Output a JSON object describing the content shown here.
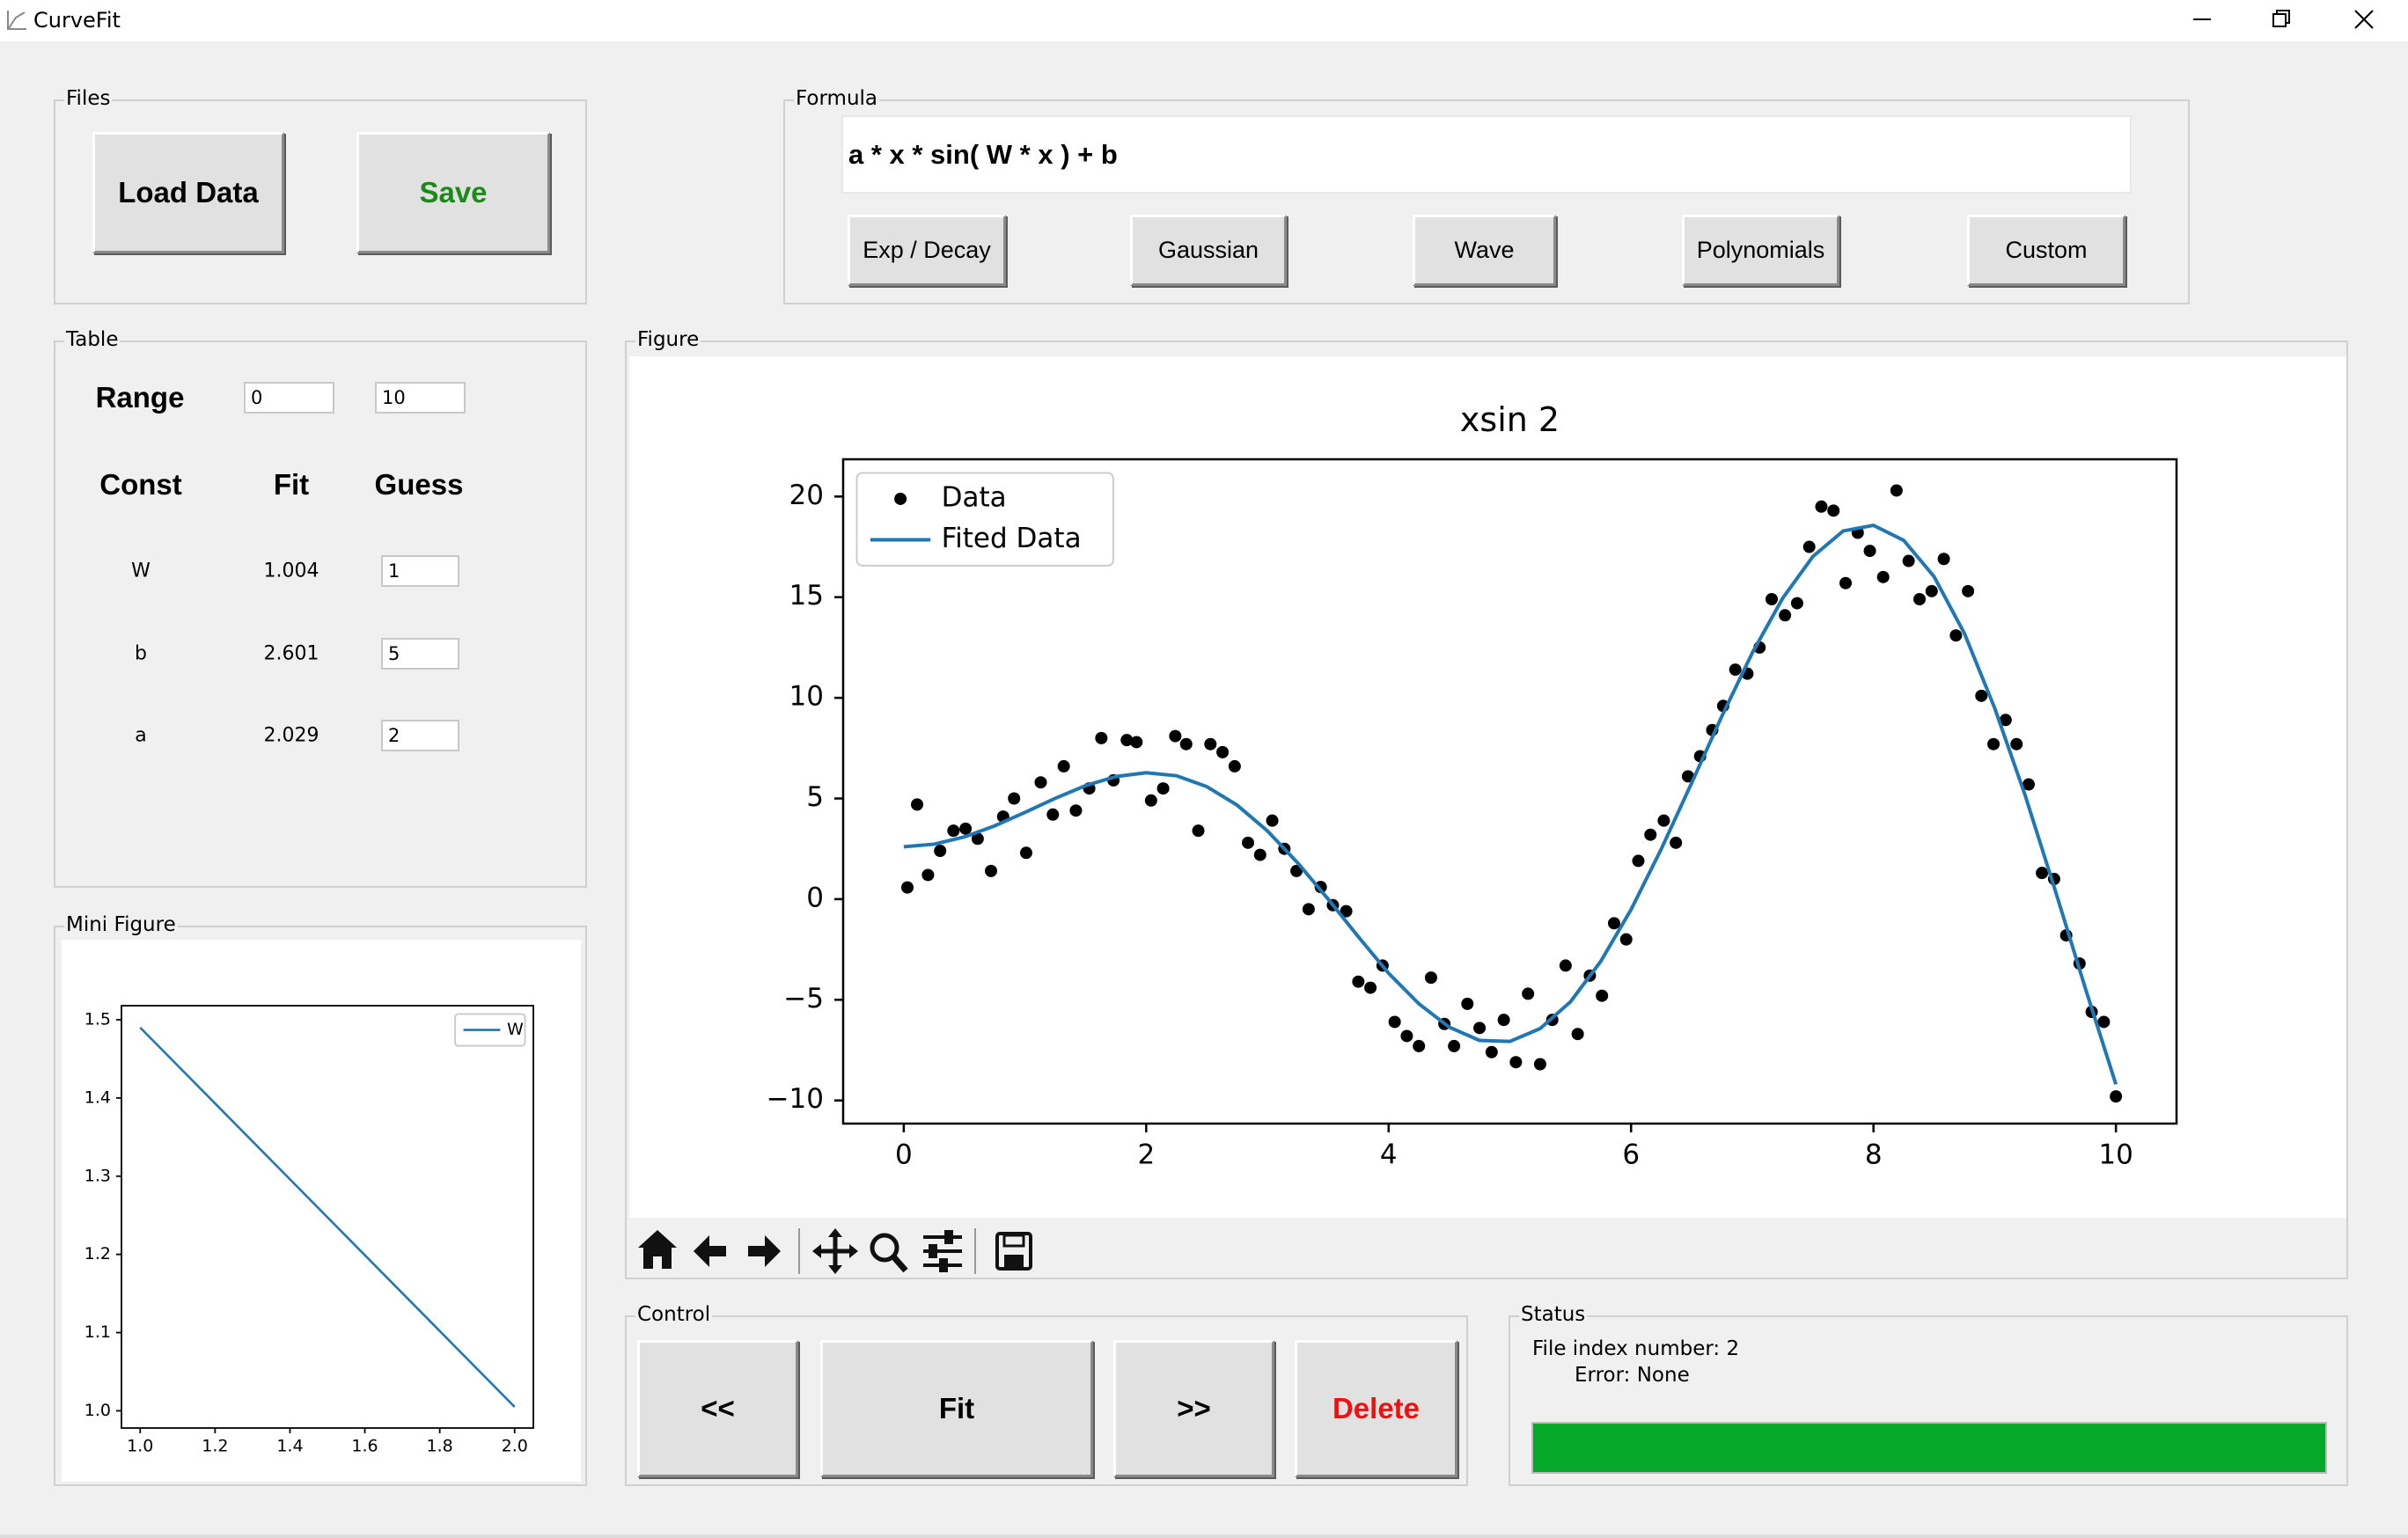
{
  "window": {
    "title": "CurveFit"
  },
  "files": {
    "label": "Files",
    "load": "Load Data",
    "save": "Save"
  },
  "formula": {
    "label": "Formula",
    "expression": "a * x * sin( W * x ) + b",
    "presets": [
      "Exp / Decay",
      "Gaussian",
      "Wave",
      "Polynomials",
      "Custom"
    ]
  },
  "table": {
    "label": "Table",
    "range_label": "Range",
    "range": [
      0,
      10
    ],
    "headers": [
      "Const",
      "Fit",
      "Guess"
    ],
    "rows": [
      [
        "W",
        1.004,
        1
      ],
      [
        "b",
        2.601,
        5
      ],
      [
        "a",
        2.029,
        2
      ]
    ]
  },
  "mini_figure": {
    "label": "Mini Figure",
    "chart": {
      "type": "line",
      "series": [
        {
          "name": "W",
          "color": "#1f77b4",
          "mode": "line",
          "x": [
            1.0,
            2.0
          ],
          "values": [
            1.49,
            1.005
          ]
        }
      ],
      "xlim": [
        0.95,
        2.05
      ],
      "ylim": [
        0.978,
        1.518
      ],
      "xticks": [
        {
          "value": 1,
          "label": "1.0"
        },
        1.2,
        1.4,
        1.6,
        1.8,
        {
          "value": 2,
          "label": "2.0"
        }
      ],
      "yticks": [
        {
          "value": 1,
          "label": "1.0"
        },
        1.1,
        1.2,
        1.3,
        1.4,
        {
          "value": 1.5,
          "label": "1.5"
        }
      ],
      "legend": "upper right"
    }
  },
  "figure": {
    "label": "Figure",
    "chart": {
      "type": "scatter",
      "title": "xsin 2",
      "series": [
        {
          "name": "Data",
          "color": "#000000",
          "mode": "markers",
          "x": [
            0.03,
            0.11,
            0.2,
            0.3,
            0.41,
            0.51,
            0.61,
            0.72,
            0.82,
            0.91,
            1.01,
            1.13,
            1.23,
            1.32,
            1.42,
            1.53,
            1.63,
            1.73,
            1.84,
            1.92,
            2.04,
            2.14,
            2.24,
            2.33,
            2.43,
            2.53,
            2.63,
            2.73,
            2.84,
            2.94,
            3.04,
            3.14,
            3.24,
            3.34,
            3.44,
            3.54,
            3.65,
            3.75,
            3.85,
            3.95,
            4.05,
            4.15,
            4.25,
            4.35,
            4.46,
            4.54,
            4.65,
            4.75,
            4.85,
            4.95,
            5.05,
            5.15,
            5.25,
            5.35,
            5.46,
            5.56,
            5.66,
            5.76,
            5.86,
            5.96,
            6.06,
            6.16,
            6.27,
            6.37,
            6.47,
            6.57,
            6.67,
            6.76,
            6.86,
            6.96,
            7.06,
            7.16,
            7.27,
            7.37,
            7.47,
            7.57,
            7.67,
            7.77,
            7.87,
            7.97,
            8.08,
            8.19,
            8.29,
            8.38,
            8.48,
            8.58,
            8.68,
            8.78,
            8.89,
            8.99,
            9.09,
            9.18,
            9.28,
            9.39,
            9.49,
            9.59,
            9.7,
            9.8,
            9.9,
            10.0
          ],
          "values": [
            0.58,
            4.7,
            1.2,
            2.4,
            3.4,
            3.5,
            3.0,
            1.4,
            4.1,
            5.0,
            2.3,
            5.8,
            4.2,
            6.6,
            4.4,
            5.5,
            8.0,
            5.9,
            7.9,
            7.8,
            4.9,
            5.5,
            8.1,
            7.7,
            3.4,
            7.7,
            7.3,
            6.6,
            2.8,
            2.2,
            3.9,
            2.5,
            1.4,
            -0.5,
            0.6,
            -0.3,
            -0.6,
            -4.1,
            -4.4,
            -3.3,
            -6.1,
            -6.8,
            -7.3,
            -3.9,
            -6.2,
            -7.3,
            -5.2,
            -6.4,
            -7.6,
            -6.0,
            -8.1,
            -4.7,
            -8.2,
            -6.0,
            -3.3,
            -6.7,
            -3.8,
            -4.8,
            -1.2,
            -2.0,
            1.9,
            3.2,
            3.9,
            2.8,
            6.1,
            7.1,
            8.4,
            9.6,
            11.4,
            11.2,
            12.5,
            14.9,
            14.1,
            14.7,
            17.5,
            19.5,
            19.3,
            15.7,
            18.2,
            17.3,
            16.0,
            20.3,
            16.8,
            14.9,
            15.3,
            16.9,
            13.1,
            15.3,
            10.1,
            7.7,
            8.9,
            7.7,
            5.7,
            1.3,
            1.0,
            -1.8,
            -3.2,
            -5.6,
            -6.1,
            -9.8
          ]
        },
        {
          "name": "Fited Data",
          "color": "#1f77b4",
          "mode": "line",
          "x": [
            0,
            0.25,
            0.5,
            0.75,
            1,
            1.25,
            1.5,
            1.75,
            2,
            2.25,
            2.5,
            2.75,
            3,
            3.25,
            3.5,
            3.75,
            4,
            4.25,
            4.5,
            4.75,
            5,
            5.25,
            5.5,
            5.75,
            6,
            6.25,
            6.5,
            6.75,
            7,
            7.25,
            7.5,
            7.75,
            8,
            8.25,
            8.5,
            8.75,
            9,
            9.25,
            9.5,
            9.75,
            10
          ],
          "values": [
            2.6,
            2.73,
            3.09,
            3.64,
            4.31,
            5.01,
            5.64,
            6.09,
            6.28,
            6.13,
            5.59,
            4.67,
            3.39,
            1.8,
            0.01,
            -1.87,
            -3.68,
            -5.2,
            -6.36,
            -7.02,
            -7.07,
            -6.43,
            -5.1,
            -3.09,
            -0.52,
            2.5,
            5.77,
            9.1,
            12.23,
            14.94,
            17.02,
            18.29,
            18.57,
            17.82,
            16.02,
            13.2,
            9.49,
            5.18,
            0.42,
            -4.47,
            -9.2
          ]
        }
      ],
      "xlim": [
        -0.5,
        10.5
      ],
      "ylim": [
        -11.15,
        21.85
      ],
      "xticks": [
        0,
        2,
        4,
        6,
        8,
        10
      ],
      "yticks": [
        {
          "value": -10,
          "label": "−10"
        },
        {
          "value": -5,
          "label": "−5"
        },
        0,
        5,
        10,
        15,
        20
      ],
      "legend": "upper left"
    }
  },
  "control": {
    "label": "Control",
    "buttons": [
      "<<",
      "Fit",
      ">>",
      "Delete"
    ]
  },
  "status": {
    "label": "Status",
    "lines": [
      "File index number: 2",
      "Error: None"
    ],
    "progress": 100
  }
}
